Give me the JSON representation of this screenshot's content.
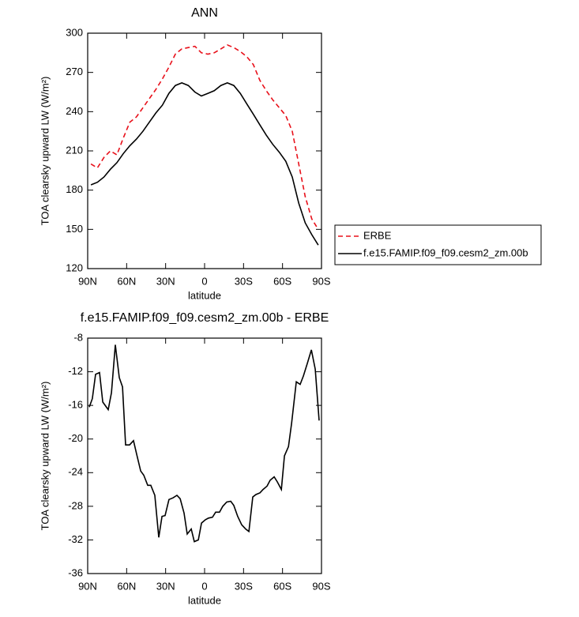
{
  "chart_data": [
    {
      "type": "line",
      "title": "ANN",
      "x_label": "latitude",
      "y_label": "TOA clearsky upward LW (W/m²)",
      "x": [
        87.5,
        82.5,
        77.5,
        72.5,
        67.5,
        62.5,
        57.5,
        52.5,
        47.5,
        42.5,
        37.5,
        32.5,
        27.5,
        22.5,
        17.5,
        12.5,
        7.5,
        2.5,
        -2.5,
        -7.5,
        -12.5,
        -17.5,
        -22.5,
        -27.5,
        -32.5,
        -37.5,
        -42.5,
        -47.5,
        -52.5,
        -57.5,
        -62.5,
        -67.5,
        -72.5,
        -77.5,
        -82.5,
        -87.5
      ],
      "series": [
        {
          "name": "ERBE",
          "color": "#e8101a",
          "dash": "dashed",
          "values": [
            200,
            197,
            205,
            210,
            207,
            220,
            232,
            236,
            243,
            250,
            257,
            265,
            274,
            284,
            288,
            289,
            290,
            285,
            284,
            285,
            288,
            291,
            289,
            286,
            282,
            276,
            264,
            256,
            249,
            243,
            237,
            225,
            200,
            175,
            158,
            150
          ]
        },
        {
          "name": "f.e15.FAMIP.f09_f09.cesm2_zm.00b",
          "color": "#000000",
          "dash": "solid",
          "values": [
            184,
            186,
            190,
            196,
            201,
            208,
            214,
            219,
            225,
            232,
            239,
            245,
            254,
            260,
            262,
            260,
            255,
            252,
            254,
            256,
            260,
            262,
            260,
            254,
            246,
            238,
            230,
            222,
            215,
            209,
            202,
            190,
            170,
            155,
            146,
            138
          ]
        }
      ],
      "xlim": [
        90,
        -90
      ],
      "xticks": [
        {
          "value": 90,
          "label": "90N"
        },
        {
          "value": 60,
          "label": "60N"
        },
        {
          "value": 30,
          "label": "30N"
        },
        0,
        {
          "value": -30,
          "label": "30S"
        },
        {
          "value": -60,
          "label": "60S"
        },
        {
          "value": -90,
          "label": "90S"
        }
      ],
      "ylim": [
        120,
        300
      ],
      "yticks": [
        120,
        150,
        180,
        210,
        240,
        270,
        300
      ],
      "legend_position": "right"
    },
    {
      "type": "line",
      "title": "f.e15.FAMIP.f09_f09.cesm2_zm.00b - ERBE",
      "x_label": "latitude",
      "y_label": "TOA clearsky upward LW (W/m²)",
      "color": "#000000",
      "x": [
        88.8,
        86.4,
        83.9,
        80.9,
        78.4,
        74.2,
        71.7,
        68.7,
        65.7,
        63.2,
        60.8,
        57.8,
        54.7,
        52.3,
        49.2,
        46.8,
        43.8,
        41.4,
        38.3,
        35.3,
        32.8,
        30.4,
        27.4,
        24.3,
        21.3,
        18.8,
        15.8,
        13.4,
        10.3,
        7.9,
        4.8,
        2.4,
        -0.6,
        -3.0,
        -6.1,
        -8.5,
        -11.5,
        -14.0,
        -17.0,
        -20.1,
        -22.5,
        -25.5,
        -28.6,
        -31.6,
        -34.1,
        -37.1,
        -39.5,
        -42.6,
        -45.0,
        -48.1,
        -50.5,
        -53.6,
        -56.0,
        -59.1,
        -61.5,
        -64.6,
        -67.0,
        -70.6,
        -73.6,
        -76.1,
        -79.1,
        -82.2,
        -85.2,
        -88.2
      ],
      "values": [
        -16.2,
        -15.2,
        -12.3,
        -12.1,
        -15.6,
        -16.5,
        -14.5,
        -8.8,
        -12.7,
        -13.8,
        -20.7,
        -20.7,
        -20.2,
        -21.8,
        -23.8,
        -24.3,
        -25.5,
        -25.5,
        -26.7,
        -31.7,
        -29.2,
        -29.1,
        -27.2,
        -27.0,
        -26.7,
        -27.1,
        -28.8,
        -31.3,
        -30.7,
        -32.2,
        -32.0,
        -30.0,
        -29.6,
        -29.4,
        -29.3,
        -28.7,
        -28.7,
        -28.0,
        -27.5,
        -27.4,
        -27.9,
        -29.2,
        -30.2,
        -30.7,
        -31.0,
        -26.9,
        -26.6,
        -26.4,
        -26.0,
        -25.6,
        -24.9,
        -24.5,
        -25.1,
        -26.0,
        -22.0,
        -20.9,
        -18.1,
        -13.2,
        -13.5,
        -12.5,
        -11.0,
        -9.4,
        -11.7,
        -17.8
      ],
      "xlim": [
        90,
        -90
      ],
      "xticks": [
        {
          "value": 90,
          "label": "90N"
        },
        {
          "value": 60,
          "label": "60N"
        },
        {
          "value": 30,
          "label": "30N"
        },
        0,
        {
          "value": -30,
          "label": "30S"
        },
        {
          "value": -60,
          "label": "60S"
        },
        {
          "value": -90,
          "label": "90S"
        }
      ],
      "ylim": [
        -36,
        -8
      ],
      "yticks": [
        -36,
        -32,
        -28,
        -24,
        -20,
        -16,
        -12,
        -8
      ]
    }
  ]
}
